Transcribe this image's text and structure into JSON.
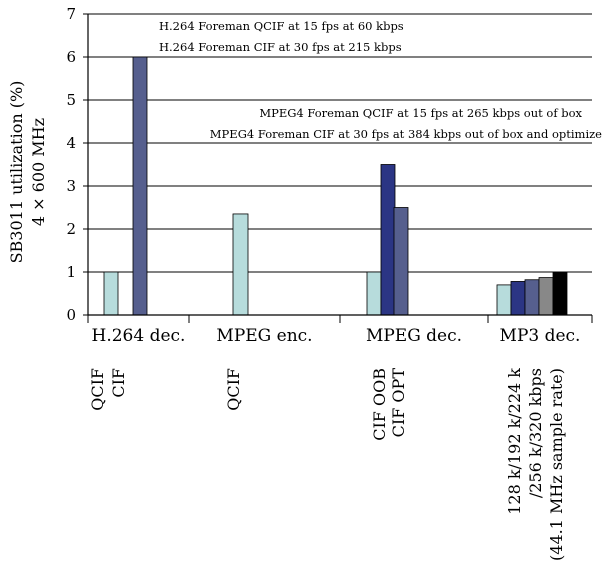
{
  "chart_data": {
    "type": "bar",
    "ylabel_line1": "SB3011 utilization (%)",
    "ylabel_line2": "4 × 600 MHz",
    "ylim": [
      0,
      7
    ],
    "yticks": [
      "0",
      "1",
      "2",
      "3",
      "4",
      "5",
      "6",
      "7"
    ],
    "grid": true,
    "groups": [
      {
        "label": "H.264 dec.",
        "sublabels": [
          "QCIF",
          "CIF"
        ],
        "bars": [
          {
            "value": 1.0,
            "color": "#b7dcdc"
          },
          {
            "value": 6.0,
            "color": "#565f8e"
          }
        ]
      },
      {
        "label": "MPEG enc.",
        "sublabels": [
          "QCIF"
        ],
        "bars": [
          {
            "value": 2.35,
            "color": "#b7dcdc"
          }
        ]
      },
      {
        "label": "MPEG dec.",
        "sublabels": [
          "CIF OOB",
          "CIF OPT"
        ],
        "bars": [
          {
            "value": 1.0,
            "color": "#b7dcdc"
          },
          {
            "value": 3.5,
            "color": "#2b3584"
          },
          {
            "value": 2.5,
            "color": "#565f8e"
          }
        ]
      },
      {
        "label": "MP3 dec.",
        "sublabels": [
          "128 k/192 k/224 k",
          "/256 k/320 kbps",
          "(44.1 MHz sample rate)"
        ],
        "bars": [
          {
            "value": 0.7,
            "color": "#b7dcdc"
          },
          {
            "value": 0.78,
            "color": "#2b3584"
          },
          {
            "value": 0.82,
            "color": "#565f8e"
          },
          {
            "value": 0.87,
            "color": "#888888"
          },
          {
            "value": 1.0,
            "color": "#000000"
          }
        ]
      }
    ],
    "annotations": [
      "H.264 Foreman QCIF at 15 fps at 60 kbps",
      "H.264 Foreman CIF at 30 fps at 215 kbps",
      "MPEG4 Foreman QCIF at 15 fps at 265 kbps out of box",
      "MPEG4 Foreman CIF at 30 fps at 384 kbps out of box and optimize"
    ]
  }
}
